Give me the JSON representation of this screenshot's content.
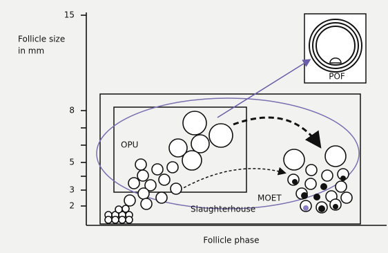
{
  "y_axis": {
    "label_lines": [
      "Follicle size",
      "in mm"
    ],
    "ticks": [
      "15",
      "8",
      "5",
      "3",
      "2"
    ]
  },
  "x_axis": {
    "label": "Follicle phase"
  },
  "regions": {
    "opu": "OPU",
    "moet": "MOET",
    "slaughterhouse": "Slaughterhouse",
    "pof": "POF"
  }
}
